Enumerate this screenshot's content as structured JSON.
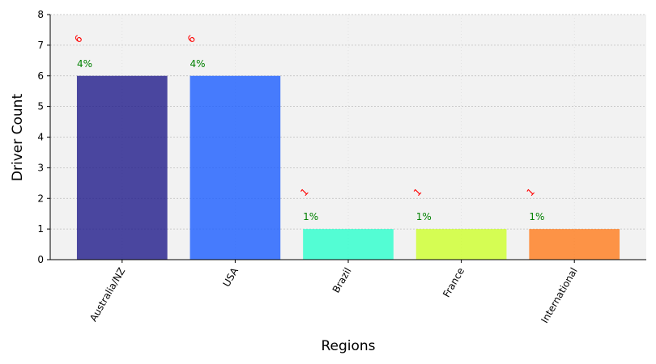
{
  "chart_data": {
    "type": "bar",
    "categories": [
      "Australia/NZ",
      "USA",
      "Brazil",
      "France",
      "International"
    ],
    "values": [
      6,
      6,
      1,
      1,
      1
    ],
    "value_labels": [
      "6",
      "6",
      "1",
      "1",
      "1"
    ],
    "percent_labels": [
      "4%",
      "4%",
      "1%",
      "1%",
      "1%"
    ],
    "bar_colors": [
      "#1f1a8a",
      "#1a5cff",
      "#2affcc",
      "#cdff2a",
      "#ff7a1a"
    ],
    "bar_opacity": 0.8,
    "value_label_color": "#ff0000",
    "percent_label_color": "#008000",
    "xlabel": "Regions",
    "ylabel": "Driver Count",
    "ylim": [
      0,
      8
    ],
    "yticks": [
      "0",
      "1",
      "2",
      "3",
      "4",
      "5",
      "6",
      "7",
      "8"
    ],
    "grid": true,
    "background_color": "#f2f2f2",
    "legend": "none"
  }
}
